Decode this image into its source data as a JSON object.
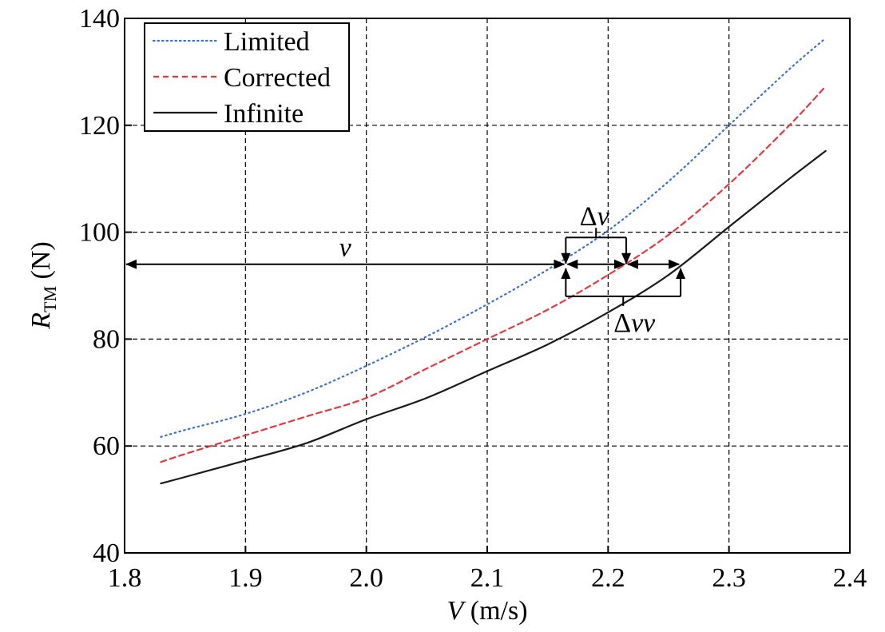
{
  "chart_data": {
    "type": "line",
    "title": "",
    "xlabel": {
      "var": "V",
      "unit": " (m/s)"
    },
    "ylabel": {
      "var": "R",
      "sub": "TM",
      "unit": " (N)"
    },
    "xlim": [
      1.8,
      2.4
    ],
    "ylim": [
      40,
      140
    ],
    "x_ticks": [
      1.8,
      1.9,
      2.0,
      2.1,
      2.2,
      2.3,
      2.4
    ],
    "x_tick_labels": [
      "1.8",
      "1.9",
      "2.0",
      "2.1",
      "2.2",
      "2.3",
      "2.4"
    ],
    "y_ticks": [
      40,
      60,
      80,
      100,
      120,
      140
    ],
    "y_tick_labels": [
      "40",
      "60",
      "80",
      "100",
      "120",
      "140"
    ],
    "grid": true,
    "legend_position": "top-left",
    "series": [
      {
        "name": "Limited",
        "style": "dotted",
        "color": "#3b6fd6",
        "x": [
          1.83,
          1.85,
          1.9,
          1.95,
          2.0,
          2.05,
          2.1,
          2.15,
          2.2,
          2.25,
          2.3,
          2.35,
          2.38
        ],
        "values": [
          61.7,
          63.0,
          66.0,
          70.0,
          75.0,
          80.5,
          86.5,
          93.0,
          100.3,
          109.5,
          120.0,
          130.5,
          136.3
        ]
      },
      {
        "name": "Corrected",
        "style": "dashed",
        "color": "#e8363f",
        "x": [
          1.83,
          1.85,
          1.9,
          1.95,
          2.0,
          2.05,
          2.1,
          2.15,
          2.2,
          2.25,
          2.3,
          2.35,
          2.38
        ],
        "values": [
          57.0,
          58.5,
          62.0,
          65.5,
          69.0,
          74.5,
          80.0,
          85.5,
          92.0,
          99.5,
          109.0,
          120.0,
          127.3
        ]
      },
      {
        "name": "Infinite",
        "style": "solid",
        "color": "#1a1a1a",
        "x": [
          1.83,
          1.85,
          1.9,
          1.95,
          2.0,
          2.05,
          2.1,
          2.15,
          2.2,
          2.25,
          2.3,
          2.35,
          2.38
        ],
        "values": [
          53.0,
          54.2,
          57.3,
          60.5,
          65.0,
          69.0,
          74.0,
          79.0,
          85.0,
          92.0,
          101.0,
          110.0,
          115.2
        ]
      }
    ],
    "annotations": {
      "v": {
        "label": "v",
        "x_from": 1.8,
        "x_to": 2.165,
        "y": 94
      },
      "delta_v": {
        "label": "Δv",
        "arrow_from": 2.165,
        "arrow_to": 2.215,
        "arrow_y": 94,
        "bracket_x": [
          2.165,
          2.215
        ],
        "bracket_y_top": 99,
        "bracket_y_bottom": 94
      },
      "delta_vv": {
        "label": "Δvv",
        "arrow_from": 2.215,
        "arrow_to": 2.26,
        "arrow_y": 94,
        "bracket_x": [
          2.165,
          2.26
        ],
        "bracket_y_bottom": 88,
        "bracket_y_top": 93.2
      }
    }
  }
}
